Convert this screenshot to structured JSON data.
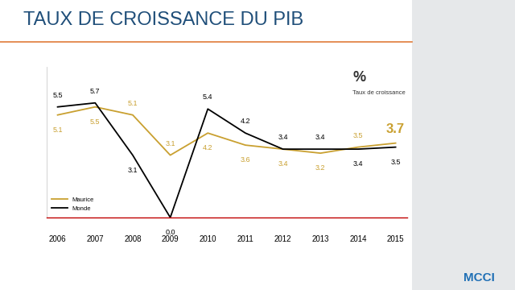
{
  "chart_data": {
    "type": "line",
    "title": "TAUX DE CROISSANCE DU PIB",
    "annotations": [
      "%",
      "Taux de croissance"
    ],
    "logo": "MCCI",
    "categories": [
      "2006",
      "2007",
      "2008",
      "2009",
      "2010",
      "2011",
      "2012",
      "2013",
      "2014",
      "2015"
    ],
    "series": [
      {
        "name": "Maurice",
        "color": "#c9a030",
        "values": [
          5.1,
          5.5,
          5.1,
          3.1,
          4.2,
          3.6,
          3.4,
          3.2,
          3.5,
          3.7
        ]
      },
      {
        "name": "Monde",
        "color": "#000000",
        "values": [
          5.5,
          5.7,
          3.1,
          0.0,
          5.4,
          4.2,
          3.4,
          3.4,
          3.4,
          3.5
        ]
      }
    ],
    "ylim": [
      0,
      7.5
    ],
    "yticks": [],
    "tick_labels": "x",
    "data_labels": true,
    "legend": "lower left",
    "grid": false
  }
}
